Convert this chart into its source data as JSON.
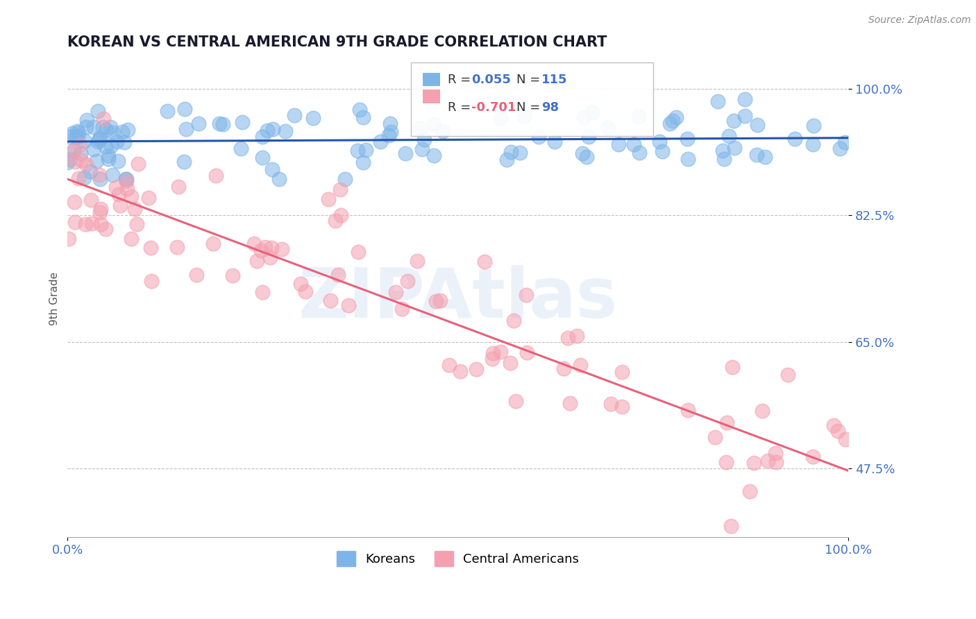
{
  "title": "KOREAN VS CENTRAL AMERICAN 9TH GRADE CORRELATION CHART",
  "source": "Source: ZipAtlas.com",
  "ylabel": "9th Grade",
  "xlim": [
    0.0,
    1.0
  ],
  "ylim": [
    0.38,
    1.04
  ],
  "yticks": [
    0.475,
    0.65,
    0.825,
    1.0
  ],
  "ytick_labels": [
    "47.5%",
    "65.0%",
    "82.5%",
    "100.0%"
  ],
  "xtick_labels": [
    "0.0%",
    "100.0%"
  ],
  "xticks": [
    0.0,
    1.0
  ],
  "korean_color": "#7EB5E8",
  "central_color": "#F4A0B0",
  "trend_korean_color": "#2255AA",
  "trend_central_color": "#E8607A",
  "R_korean": 0.055,
  "N_korean": 115,
  "R_central": -0.701,
  "N_central": 98,
  "background_color": "#FFFFFF",
  "grid_color": "#BBBBBB",
  "title_color": "#1a1a2e",
  "axis_label_color": "#4472c4",
  "watermark": "ZIPAtlas",
  "watermark_color": "#C8D8EE",
  "korean_trend_y": [
    0.927,
    0.932
  ],
  "central_trend_y_start": 0.875,
  "central_trend_y_end": 0.472
}
